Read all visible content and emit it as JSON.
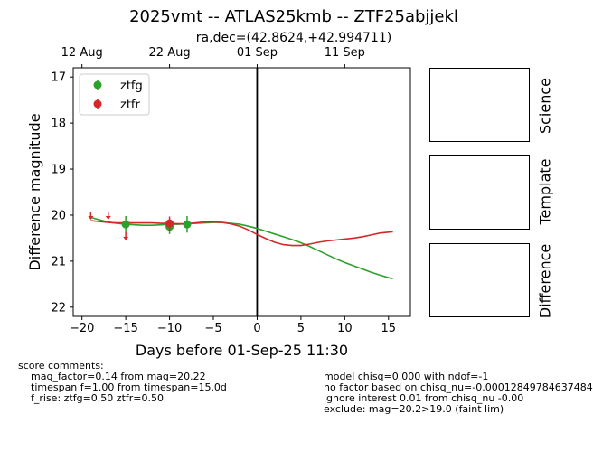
{
  "chart_data": {
    "type": "scatter",
    "title": "2025vmt -- ATLAS25kmb -- ZTF25abjjekl",
    "subtitle": "ra,dec=(42.8624,+42.994711)",
    "xlabel": "Days before 01-Sep-25 11:30",
    "ylabel": "Difference magnitude",
    "xlim": [
      -21,
      17.5
    ],
    "ylim": [
      22.2,
      16.8
    ],
    "xticks": [
      -20,
      -15,
      -10,
      -5,
      0,
      5,
      10,
      15
    ],
    "yticks": [
      17,
      18,
      19,
      20,
      21,
      22
    ],
    "top_xticks": [
      {
        "x": -20,
        "label": "12 Aug"
      },
      {
        "x": -10,
        "label": "22 Aug"
      },
      {
        "x": 0,
        "label": "01 Sep"
      },
      {
        "x": 10,
        "label": "11 Sep"
      }
    ],
    "vline_x": 0,
    "legend_position": "upper-left",
    "series": [
      {
        "name": "ztfg",
        "color": "#2ca02c",
        "points": [
          {
            "x": -15,
            "y": 20.2,
            "err": 0.18
          },
          {
            "x": -10,
            "y": 20.25,
            "err": 0.16
          },
          {
            "x": -8,
            "y": 20.2,
            "err": 0.18
          }
        ],
        "upper_limits": [],
        "model": [
          [
            -19,
            20.05
          ],
          [
            -18,
            20.1
          ],
          [
            -17,
            20.15
          ],
          [
            -16,
            20.18
          ],
          [
            -15,
            20.2
          ],
          [
            -14,
            20.21
          ],
          [
            -13,
            20.22
          ],
          [
            -12,
            20.22
          ],
          [
            -11,
            20.21
          ],
          [
            -10,
            20.2
          ],
          [
            -9,
            20.2
          ],
          [
            -8,
            20.19
          ],
          [
            -7,
            20.18
          ],
          [
            -6,
            20.17
          ],
          [
            -5,
            20.16
          ],
          [
            -4,
            20.16
          ],
          [
            -3,
            20.18
          ],
          [
            -2,
            20.2
          ],
          [
            -1,
            20.24
          ],
          [
            0,
            20.29
          ],
          [
            1,
            20.35
          ],
          [
            2,
            20.41
          ],
          [
            3,
            20.47
          ],
          [
            4,
            20.53
          ],
          [
            5,
            20.6
          ],
          [
            6,
            20.68
          ],
          [
            7,
            20.77
          ],
          [
            8,
            20.86
          ],
          [
            9,
            20.95
          ],
          [
            10,
            21.03
          ],
          [
            11,
            21.1
          ],
          [
            12,
            21.17
          ],
          [
            13,
            21.24
          ],
          [
            14,
            21.3
          ],
          [
            15,
            21.36
          ],
          [
            15.5,
            21.38
          ]
        ]
      },
      {
        "name": "ztfr",
        "color": "#d62728",
        "points": [
          {
            "x": -10,
            "y": 20.18,
            "err": 0.15
          }
        ],
        "upper_limits": [
          {
            "x": -19,
            "y": 20.0
          },
          {
            "x": -17,
            "y": 20.0
          },
          {
            "x": -15,
            "y": 20.45
          }
        ],
        "model": [
          [
            -19,
            20.12
          ],
          [
            -18,
            20.14
          ],
          [
            -17,
            20.16
          ],
          [
            -16,
            20.17
          ],
          [
            -15,
            20.17
          ],
          [
            -14,
            20.17
          ],
          [
            -13,
            20.17
          ],
          [
            -12,
            20.17
          ],
          [
            -11,
            20.18
          ],
          [
            -10,
            20.18
          ],
          [
            -9,
            20.19
          ],
          [
            -8,
            20.19
          ],
          [
            -7,
            20.17
          ],
          [
            -6,
            20.15
          ],
          [
            -5,
            20.15
          ],
          [
            -4,
            20.16
          ],
          [
            -3,
            20.19
          ],
          [
            -2,
            20.24
          ],
          [
            -1,
            20.32
          ],
          [
            0,
            20.42
          ],
          [
            1,
            20.51
          ],
          [
            2,
            20.59
          ],
          [
            3,
            20.64
          ],
          [
            4,
            20.66
          ],
          [
            5,
            20.66
          ],
          [
            6,
            20.63
          ],
          [
            7,
            20.59
          ],
          [
            8,
            20.56
          ],
          [
            9,
            20.54
          ],
          [
            10,
            20.52
          ],
          [
            11,
            20.5
          ],
          [
            12,
            20.47
          ],
          [
            13,
            20.43
          ],
          [
            14,
            20.39
          ],
          [
            15,
            20.37
          ],
          [
            15.5,
            20.36
          ]
        ]
      }
    ]
  },
  "panels": {
    "science": "Science",
    "template": "Template",
    "difference": "Difference"
  },
  "comments": {
    "header": "score comments:",
    "left": [
      "mag_factor=0.14 from mag=20.22",
      "timespan f=1.00 from timespan=15.0d",
      "f_rise: ztfg=0.50 ztfr=0.50"
    ],
    "right": [
      "model chisq=0.000 with ndof=-1",
      "no factor based on chisq_nu=-0.00012849784637484",
      "ignore interest 0.01 from chisq_nu -0.00",
      "exclude: mag=20.2>19.0 (faint lim)"
    ]
  }
}
